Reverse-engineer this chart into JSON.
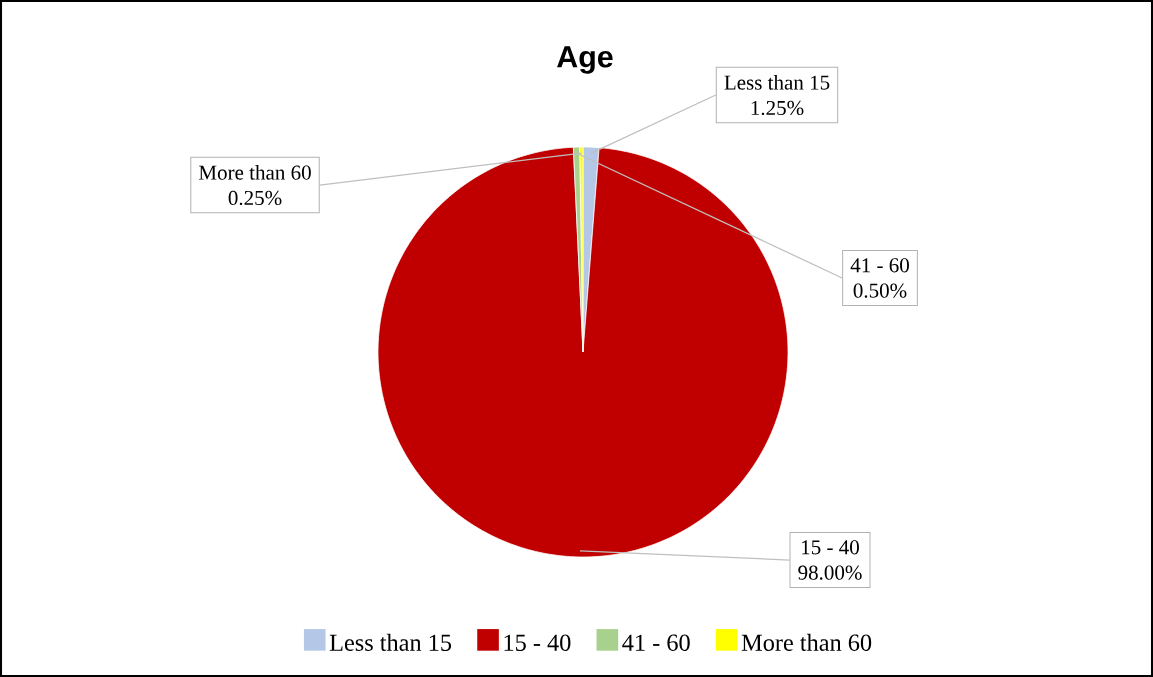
{
  "chart_data": {
    "type": "pie",
    "title": "Age",
    "categories": [
      "Less than 15",
      "15 - 40",
      "41 - 60",
      "More than 60"
    ],
    "values": [
      1.25,
      98,
      0.5,
      0.25
    ],
    "colors": [
      "#b4c7e7",
      "#c00000",
      "#a9d18e",
      "#ffff00"
    ],
    "value_labels": [
      "1.25%",
      "98.00%",
      "0.50%",
      "0.25%"
    ],
    "legend": "bottom"
  }
}
